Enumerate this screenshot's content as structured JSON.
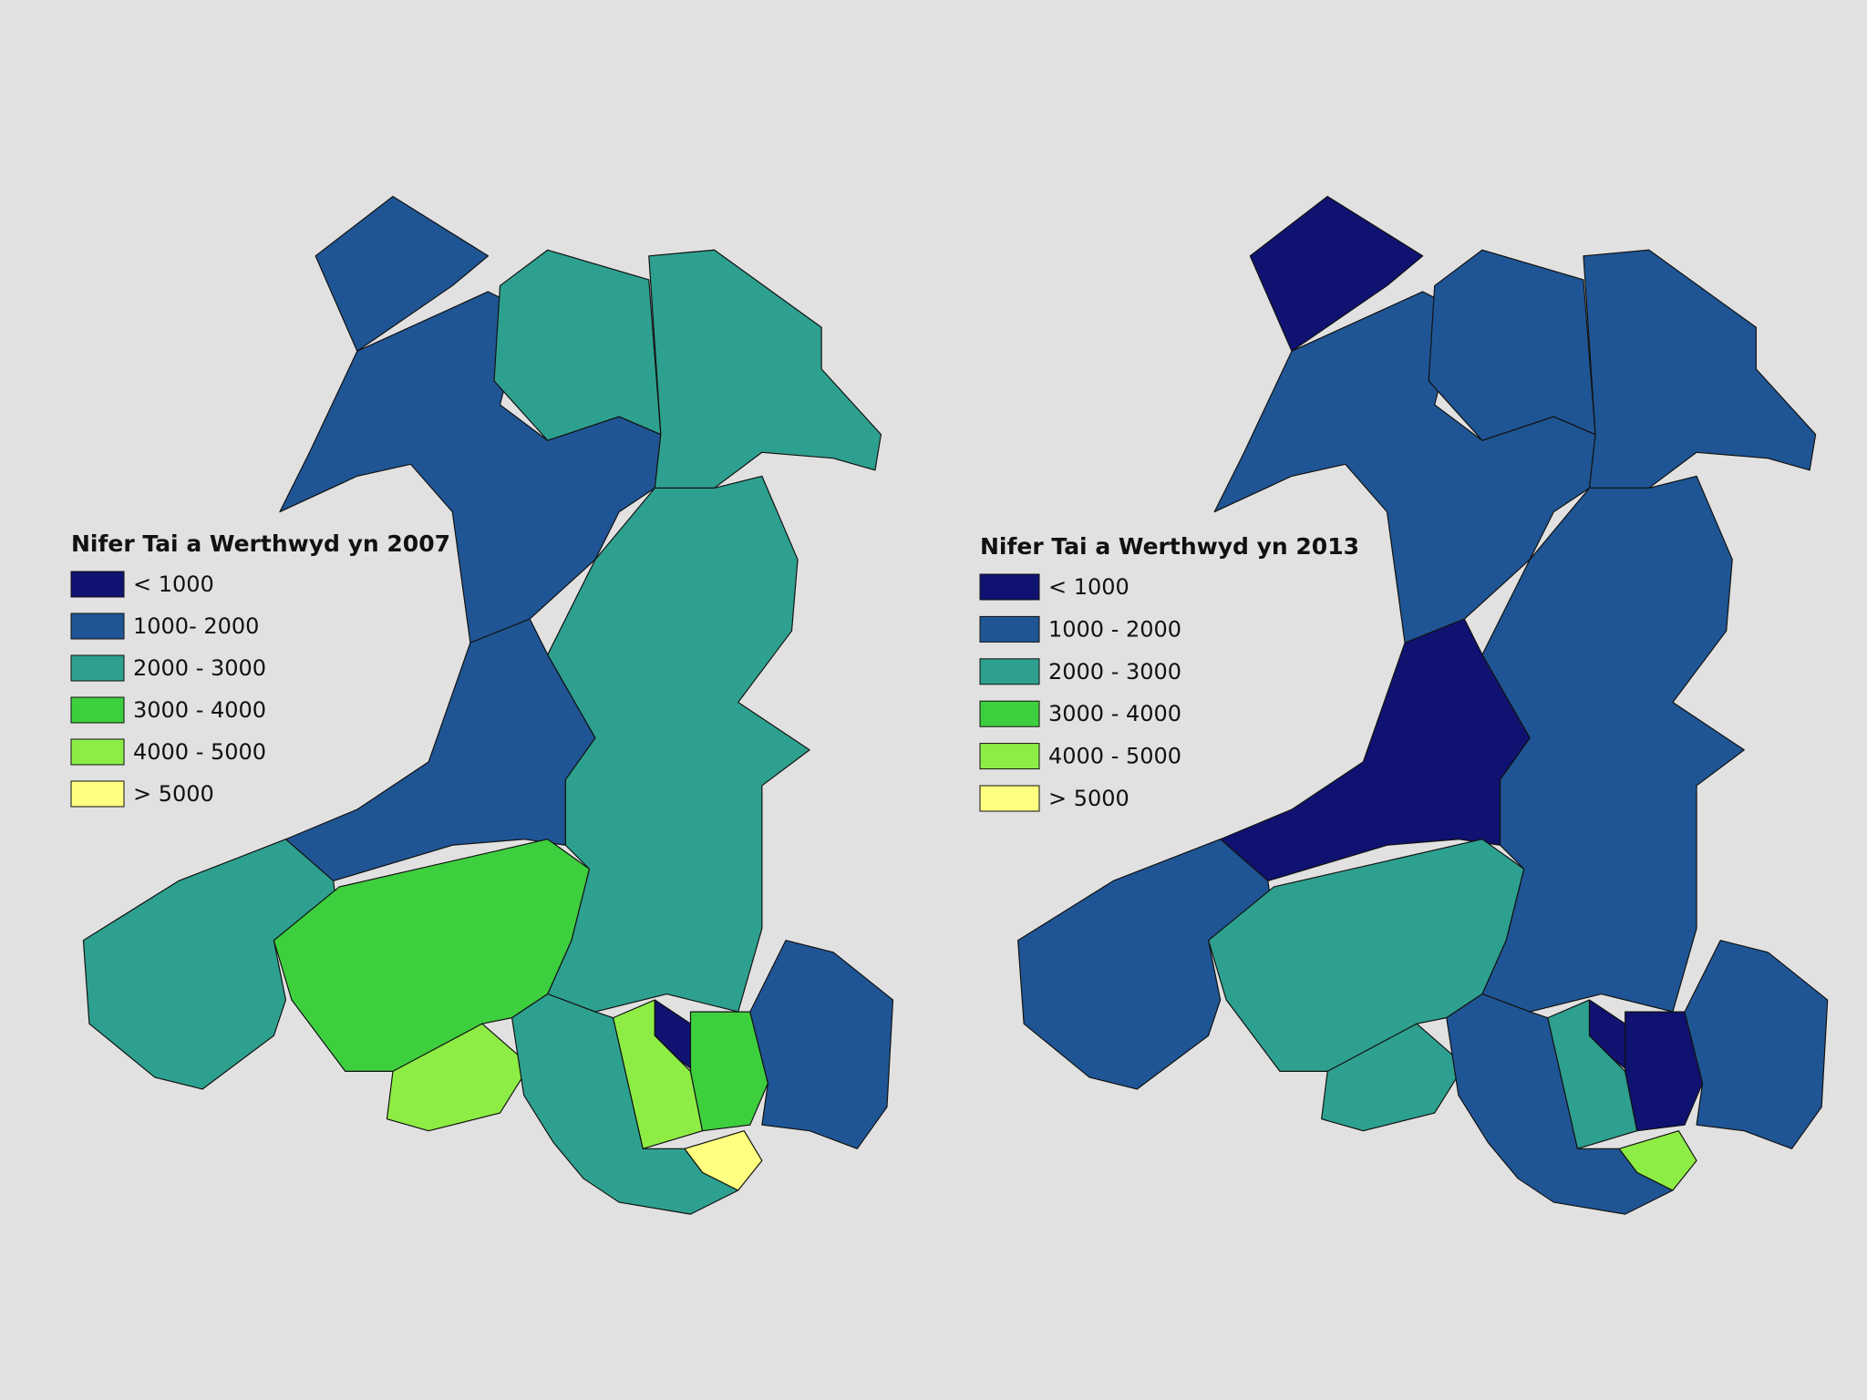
{
  "maps": [
    {
      "legend": {
        "title": "Nifer Tai a Werthwyd yn 2007",
        "items": [
          {
            "label": "< 1000",
            "color": "#0f1270"
          },
          {
            "label": "1000- 2000",
            "color": "#1f5594"
          },
          {
            "label": "2000 - 3000",
            "color": "#2ea08f"
          },
          {
            "label": "3000 - 4000",
            "color": "#3ecf3e"
          },
          {
            "label": "4000 - 5000",
            "color": "#8eed45"
          },
          {
            "label": "> 5000",
            "color": "#ffff80"
          }
        ]
      }
    },
    {
      "legend": {
        "title": "Nifer Tai a Werthwyd yn 2013",
        "items": [
          {
            "label": "< 1000",
            "color": "#0f1270"
          },
          {
            "label": "1000 - 2000",
            "color": "#1f5594"
          },
          {
            "label": "2000 - 3000",
            "color": "#2ea08f"
          },
          {
            "label": "3000 - 4000",
            "color": "#3ecf3e"
          },
          {
            "label": "4000 - 5000",
            "color": "#8eed45"
          },
          {
            "label": "> 5000",
            "color": "#ffff80"
          }
        ]
      }
    }
  ]
}
